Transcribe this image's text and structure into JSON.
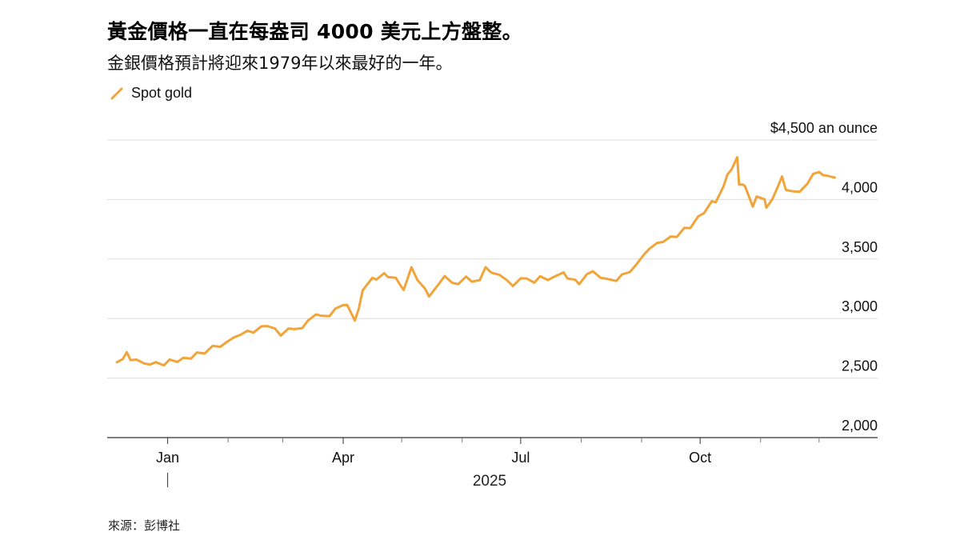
{
  "title": "黃金價格一直在每盎司 4000 美元上方盤整。",
  "subtitle": "金銀價格預計將迎來1979年以來最好的一年。",
  "source": "來源：彭博社",
  "colors": {
    "series": "#f0a43a",
    "grid": "#dddddd",
    "axis": "#333333",
    "text": "#000000"
  },
  "chart_data": {
    "type": "line",
    "unit_label": "$4,500 an ounce",
    "ylim": [
      2000,
      4500
    ],
    "yticks": [
      2000,
      2500,
      3000,
      3500,
      4000,
      4500
    ],
    "ytick_labels": [
      "2,000",
      "2,500",
      "3,000",
      "3,500",
      "4,000",
      "$4,500 an ounce"
    ],
    "xlim": [
      "2024-12-01",
      "2025-12-31"
    ],
    "xticks": [
      {
        "date": "2025-01-01",
        "label": "Jan"
      },
      {
        "date": "2025-04-01",
        "label": "Apr"
      },
      {
        "date": "2025-07-01",
        "label": "Jul"
      },
      {
        "date": "2025-10-01",
        "label": "Oct"
      }
    ],
    "minor_ticks": [
      "2025-02-01",
      "2025-03-01",
      "2025-05-01",
      "2025-06-01",
      "2025-08-01",
      "2025-09-01",
      "2025-11-01",
      "2025-12-01"
    ],
    "year_label": "2025",
    "grid": true,
    "legend": "top-left",
    "series": [
      {
        "name": "Spot gold",
        "points": [
          [
            "2024-12-06",
            2633
          ],
          [
            "2024-12-09",
            2660
          ],
          [
            "2024-12-11",
            2718
          ],
          [
            "2024-12-13",
            2650
          ],
          [
            "2024-12-16",
            2655
          ],
          [
            "2024-12-18",
            2640
          ],
          [
            "2024-12-20",
            2622
          ],
          [
            "2024-12-23",
            2614
          ],
          [
            "2024-12-26",
            2634
          ],
          [
            "2024-12-30",
            2606
          ],
          [
            "2025-01-02",
            2656
          ],
          [
            "2025-01-06",
            2636
          ],
          [
            "2025-01-09",
            2670
          ],
          [
            "2025-01-13",
            2663
          ],
          [
            "2025-01-16",
            2715
          ],
          [
            "2025-01-20",
            2707
          ],
          [
            "2025-01-24",
            2770
          ],
          [
            "2025-01-28",
            2763
          ],
          [
            "2025-01-31",
            2800
          ],
          [
            "2025-02-04",
            2842
          ],
          [
            "2025-02-07",
            2861
          ],
          [
            "2025-02-11",
            2898
          ],
          [
            "2025-02-14",
            2882
          ],
          [
            "2025-02-18",
            2935
          ],
          [
            "2025-02-21",
            2937
          ],
          [
            "2025-02-25",
            2916
          ],
          [
            "2025-02-28",
            2857
          ],
          [
            "2025-03-04",
            2917
          ],
          [
            "2025-03-07",
            2911
          ],
          [
            "2025-03-11",
            2920
          ],
          [
            "2025-03-14",
            2984
          ],
          [
            "2025-03-18",
            3035
          ],
          [
            "2025-03-21",
            3023
          ],
          [
            "2025-03-25",
            3020
          ],
          [
            "2025-03-28",
            3084
          ],
          [
            "2025-04-01",
            3113
          ],
          [
            "2025-04-03",
            3115
          ],
          [
            "2025-04-07",
            2983
          ],
          [
            "2025-04-09",
            3083
          ],
          [
            "2025-04-11",
            3238
          ],
          [
            "2025-04-16",
            3343
          ],
          [
            "2025-04-18",
            3327
          ],
          [
            "2025-04-22",
            3381
          ],
          [
            "2025-04-24",
            3348
          ],
          [
            "2025-04-28",
            3342
          ],
          [
            "2025-04-30",
            3288
          ],
          [
            "2025-05-02",
            3240
          ],
          [
            "2025-05-06",
            3431
          ],
          [
            "2025-05-09",
            3325
          ],
          [
            "2025-05-13",
            3250
          ],
          [
            "2025-05-15",
            3185
          ],
          [
            "2025-05-20",
            3290
          ],
          [
            "2025-05-23",
            3357
          ],
          [
            "2025-05-27",
            3300
          ],
          [
            "2025-05-30",
            3289
          ],
          [
            "2025-06-03",
            3353
          ],
          [
            "2025-06-06",
            3310
          ],
          [
            "2025-06-10",
            3323
          ],
          [
            "2025-06-13",
            3432
          ],
          [
            "2025-06-16",
            3385
          ],
          [
            "2025-06-20",
            3368
          ],
          [
            "2025-06-24",
            3322
          ],
          [
            "2025-06-27",
            3273
          ],
          [
            "2025-07-01",
            3338
          ],
          [
            "2025-07-04",
            3337
          ],
          [
            "2025-07-08",
            3302
          ],
          [
            "2025-07-11",
            3355
          ],
          [
            "2025-07-15",
            3324
          ],
          [
            "2025-07-18",
            3350
          ],
          [
            "2025-07-23",
            3388
          ],
          [
            "2025-07-25",
            3337
          ],
          [
            "2025-07-29",
            3326
          ],
          [
            "2025-07-31",
            3289
          ],
          [
            "2025-08-04",
            3373
          ],
          [
            "2025-08-07",
            3397
          ],
          [
            "2025-08-11",
            3342
          ],
          [
            "2025-08-14",
            3335
          ],
          [
            "2025-08-19",
            3316
          ],
          [
            "2025-08-22",
            3371
          ],
          [
            "2025-08-26",
            3391
          ],
          [
            "2025-08-29",
            3448
          ],
          [
            "2025-09-02",
            3533
          ],
          [
            "2025-09-05",
            3587
          ],
          [
            "2025-09-09",
            3636
          ],
          [
            "2025-09-12",
            3643
          ],
          [
            "2025-09-16",
            3690
          ],
          [
            "2025-09-19",
            3685
          ],
          [
            "2025-09-23",
            3763
          ],
          [
            "2025-09-26",
            3760
          ],
          [
            "2025-09-30",
            3858
          ],
          [
            "2025-10-03",
            3886
          ],
          [
            "2025-10-07",
            3986
          ],
          [
            "2025-10-09",
            3976
          ],
          [
            "2025-10-13",
            4110
          ],
          [
            "2025-10-15",
            4210
          ],
          [
            "2025-10-17",
            4250
          ],
          [
            "2025-10-20",
            4355
          ],
          [
            "2025-10-21",
            4125
          ],
          [
            "2025-10-23",
            4125
          ],
          [
            "2025-10-24",
            4112
          ],
          [
            "2025-10-27",
            3985
          ],
          [
            "2025-10-28",
            3940
          ],
          [
            "2025-10-30",
            4025
          ],
          [
            "2025-11-03",
            4002
          ],
          [
            "2025-11-04",
            3932
          ],
          [
            "2025-11-07",
            4001
          ],
          [
            "2025-11-10",
            4114
          ],
          [
            "2025-11-12",
            4194
          ],
          [
            "2025-11-14",
            4080
          ],
          [
            "2025-11-18",
            4068
          ],
          [
            "2025-11-21",
            4065
          ],
          [
            "2025-11-25",
            4132
          ],
          [
            "2025-11-28",
            4215
          ],
          [
            "2025-12-01",
            4232
          ],
          [
            "2025-12-03",
            4205
          ],
          [
            "2025-12-05",
            4200
          ],
          [
            "2025-12-08",
            4188
          ],
          [
            "2025-12-09",
            4184
          ]
        ]
      }
    ]
  }
}
